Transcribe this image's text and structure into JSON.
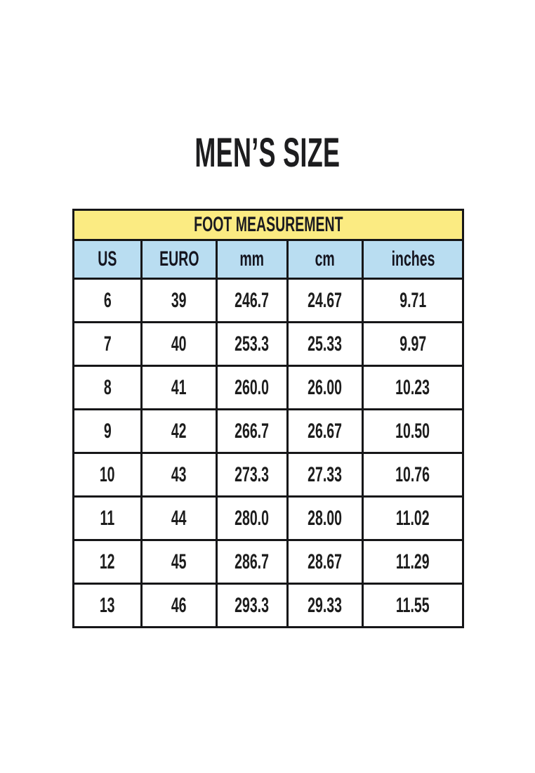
{
  "page": {
    "title": "MEN’S SIZE"
  },
  "colors": {
    "table_title_bg": "#FBEB82",
    "column_header_bg": "#B9DDF1",
    "border": "#161618",
    "text": "#1C1C1C",
    "background": "#FFFFFF"
  },
  "chart_data": {
    "type": "table",
    "title": "MEN’S SIZE",
    "table_header": "FOOT MEASUREMENT",
    "columns": [
      "US",
      "EURO",
      "mm",
      "cm",
      "inches"
    ],
    "rows": [
      [
        "6",
        "39",
        "246.7",
        "24.67",
        "9.71"
      ],
      [
        "7",
        "40",
        "253.3",
        "25.33",
        "9.97"
      ],
      [
        "8",
        "41",
        "260.0",
        "26.00",
        "10.23"
      ],
      [
        "9",
        "42",
        "266.7",
        "26.67",
        "10.50"
      ],
      [
        "10",
        "43",
        "273.3",
        "27.33",
        "10.76"
      ],
      [
        "11",
        "44",
        "280.0",
        "28.00",
        "11.02"
      ],
      [
        "12",
        "45",
        "286.7",
        "28.67",
        "11.29"
      ],
      [
        "13",
        "46",
        "293.3",
        "29.33",
        "11.55"
      ]
    ]
  }
}
